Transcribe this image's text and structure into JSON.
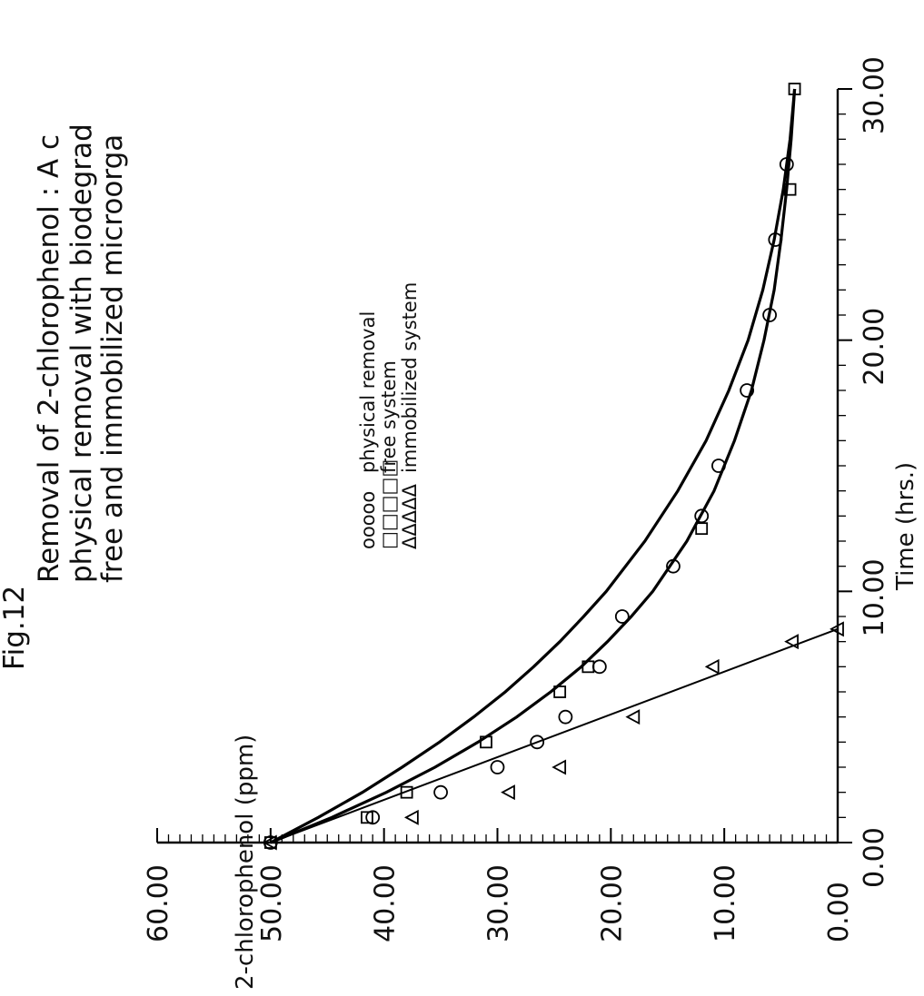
{
  "chart_data": {
    "type": "scatter",
    "title_lines": [
      "Fig.12",
      "Removal of 2-chlorophenol : A c",
      "physical removal with biodegrad",
      "free and immobilized microorga"
    ],
    "xlabel": "Time (hrs.)",
    "ylabel": "2-chlorophenol (ppm)",
    "xlim": [
      0,
      30
    ],
    "ylim": [
      0,
      60
    ],
    "x_ticks": [
      "0.00",
      "10.00",
      "20.00",
      "30.00"
    ],
    "y_ticks": [
      "0.00",
      "10.00",
      "20.00",
      "30.00",
      "40.00",
      "50.00",
      "60.00"
    ],
    "orientation": "rotated 90° clockwise",
    "legend": [
      {
        "marker_text": "ooooo",
        "label": "physical removal"
      },
      {
        "marker_text": "□□□□□",
        "label": "free system"
      },
      {
        "marker_text": "ΔΔΔΔΔ",
        "label": "immobilized system"
      }
    ],
    "series": [
      {
        "name": "physical removal",
        "marker": "circle",
        "points": [
          [
            0,
            50
          ],
          [
            1,
            41
          ],
          [
            2,
            35
          ],
          [
            3,
            30
          ],
          [
            4,
            26.5
          ],
          [
            5,
            24
          ],
          [
            7,
            21
          ],
          [
            9,
            19
          ],
          [
            11,
            14.5
          ],
          [
            13,
            12
          ],
          [
            15,
            10.5
          ],
          [
            18,
            8
          ],
          [
            21,
            6
          ],
          [
            24,
            5.5
          ],
          [
            27,
            4.5
          ]
        ],
        "fit_curve": [
          [
            0,
            50
          ],
          [
            1,
            44.6
          ],
          [
            2,
            39.8
          ],
          [
            3,
            35.5
          ],
          [
            4,
            31.7
          ],
          [
            5,
            28.3
          ],
          [
            6,
            25.3
          ],
          [
            7,
            22.6
          ],
          [
            8,
            20.3
          ],
          [
            9,
            18.2
          ],
          [
            10,
            16.3
          ],
          [
            12,
            13.3
          ],
          [
            14,
            10.9
          ],
          [
            16,
            9.1
          ],
          [
            18,
            7.6
          ],
          [
            20,
            6.5
          ],
          [
            22,
            5.6
          ],
          [
            24,
            5.0
          ],
          [
            26,
            4.5
          ],
          [
            28,
            4.1
          ],
          [
            30,
            3.8
          ]
        ]
      },
      {
        "name": "free system",
        "marker": "square",
        "points": [
          [
            0,
            50
          ],
          [
            1,
            41.5
          ],
          [
            2,
            38
          ],
          [
            4,
            31
          ],
          [
            6,
            24.5
          ],
          [
            7,
            22
          ],
          [
            12.5,
            12
          ],
          [
            26,
            4.2
          ],
          [
            30,
            3.8
          ]
        ],
        "fit_curve": [
          [
            0,
            50
          ],
          [
            1,
            45.8
          ],
          [
            2,
            41.9
          ],
          [
            3,
            38.4
          ],
          [
            4,
            35.1
          ],
          [
            5,
            32.1
          ],
          [
            6,
            29.3
          ],
          [
            7,
            26.8
          ],
          [
            8,
            24.5
          ],
          [
            9,
            22.4
          ],
          [
            10,
            20.4
          ],
          [
            12,
            17.0
          ],
          [
            14,
            14.1
          ],
          [
            16,
            11.6
          ],
          [
            18,
            9.6
          ],
          [
            20,
            7.9
          ],
          [
            22,
            6.6
          ],
          [
            24,
            5.6
          ],
          [
            26,
            4.8
          ],
          [
            28,
            4.2
          ],
          [
            30,
            3.8
          ]
        ]
      },
      {
        "name": "immobilized system",
        "marker": "triangle",
        "points": [
          [
            0,
            50
          ],
          [
            1,
            37.5
          ],
          [
            2,
            29
          ],
          [
            3,
            24.5
          ],
          [
            5,
            18
          ],
          [
            7,
            11
          ],
          [
            8,
            4
          ],
          [
            8.5,
            0
          ]
        ],
        "fit_line": [
          [
            0,
            50
          ],
          [
            8.5,
            0
          ]
        ]
      }
    ]
  }
}
